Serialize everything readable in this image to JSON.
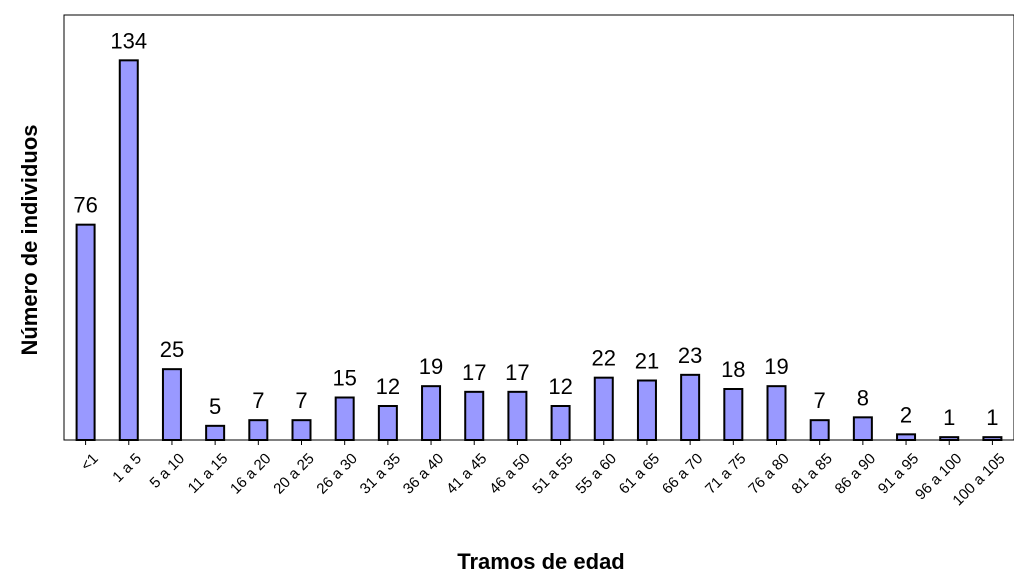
{
  "chart_data": {
    "type": "bar",
    "title": "",
    "xlabel": "Tramos de edad",
    "ylabel": "Número de individuos",
    "categories": [
      "<1",
      "1 a 5",
      "5 a 10",
      "11 a 15",
      "16 a 20",
      "20 a 25",
      "26 a 30",
      "31 a 35",
      "36 a 40",
      "41 a 45",
      "46 a 50",
      "51 a 55",
      "55 a 60",
      "61 a 65",
      "66 a 70",
      "71 a 75",
      "76 a 80",
      "81 a 85",
      "86 a 90",
      "91 a 95",
      "96 a 100",
      "100 a 105"
    ],
    "values": [
      76,
      134,
      25,
      5,
      7,
      7,
      15,
      12,
      19,
      17,
      17,
      12,
      22,
      21,
      23,
      18,
      19,
      7,
      8,
      2,
      1,
      1
    ],
    "ylim": [
      0,
      150
    ],
    "bar_color": "#9999ff",
    "grid": false,
    "legend": "none"
  }
}
